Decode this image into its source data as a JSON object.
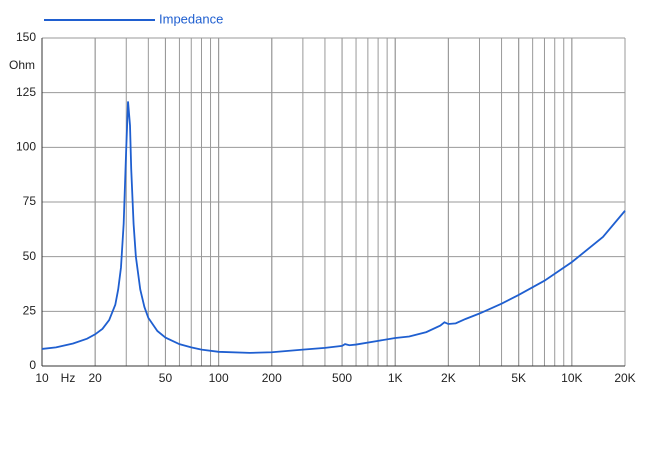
{
  "chart_data": {
    "type": "line",
    "x": [
      10,
      12,
      15,
      18,
      20,
      22,
      24,
      26,
      27,
      28,
      29,
      30,
      30.7,
      31.5,
      32,
      33,
      34,
      36,
      38,
      40,
      45,
      50,
      60,
      70,
      80,
      100,
      150,
      200,
      300,
      400,
      500,
      520,
      550,
      600,
      800,
      1000,
      1200,
      1500,
      1800,
      1900,
      2000,
      2200,
      2500,
      3000,
      4000,
      5000,
      7000,
      10000,
      15000,
      20000
    ],
    "series": [
      {
        "name": "Impedance",
        "color": "#1f5fd0",
        "values": [
          7.8,
          8.5,
          10.3,
          12.5,
          14.5,
          17,
          21,
          28,
          35,
          45,
          65,
          100,
          121,
          110,
          90,
          65,
          50,
          35,
          27,
          22,
          16,
          13,
          10,
          8.5,
          7.5,
          6.5,
          6,
          6.3,
          7.5,
          8.3,
          9.2,
          10,
          9.5,
          9.8,
          11.5,
          12.8,
          13.5,
          15.5,
          18.5,
          20,
          19.2,
          19.5,
          21.5,
          24,
          28.5,
          32.5,
          39,
          47.5,
          59,
          71
        ]
      }
    ],
    "xlim": [
      10,
      20000
    ],
    "xlog": true,
    "xticks": [
      10,
      20,
      50,
      100,
      200,
      500,
      {
        "value": 1000,
        "label": "1K"
      },
      {
        "value": 2000,
        "label": "2K"
      },
      {
        "value": 5000,
        "label": "5K"
      },
      {
        "value": 10000,
        "label": "10K"
      },
      {
        "value": 20000,
        "label": "20K"
      }
    ],
    "ylim": [
      0,
      150
    ],
    "yticks": [
      0,
      25,
      50,
      75,
      100,
      125,
      150
    ],
    "x_unit": "Hz",
    "y_unit": "Ohm",
    "grid": true,
    "minor_grid": true,
    "legend": "top-left"
  }
}
